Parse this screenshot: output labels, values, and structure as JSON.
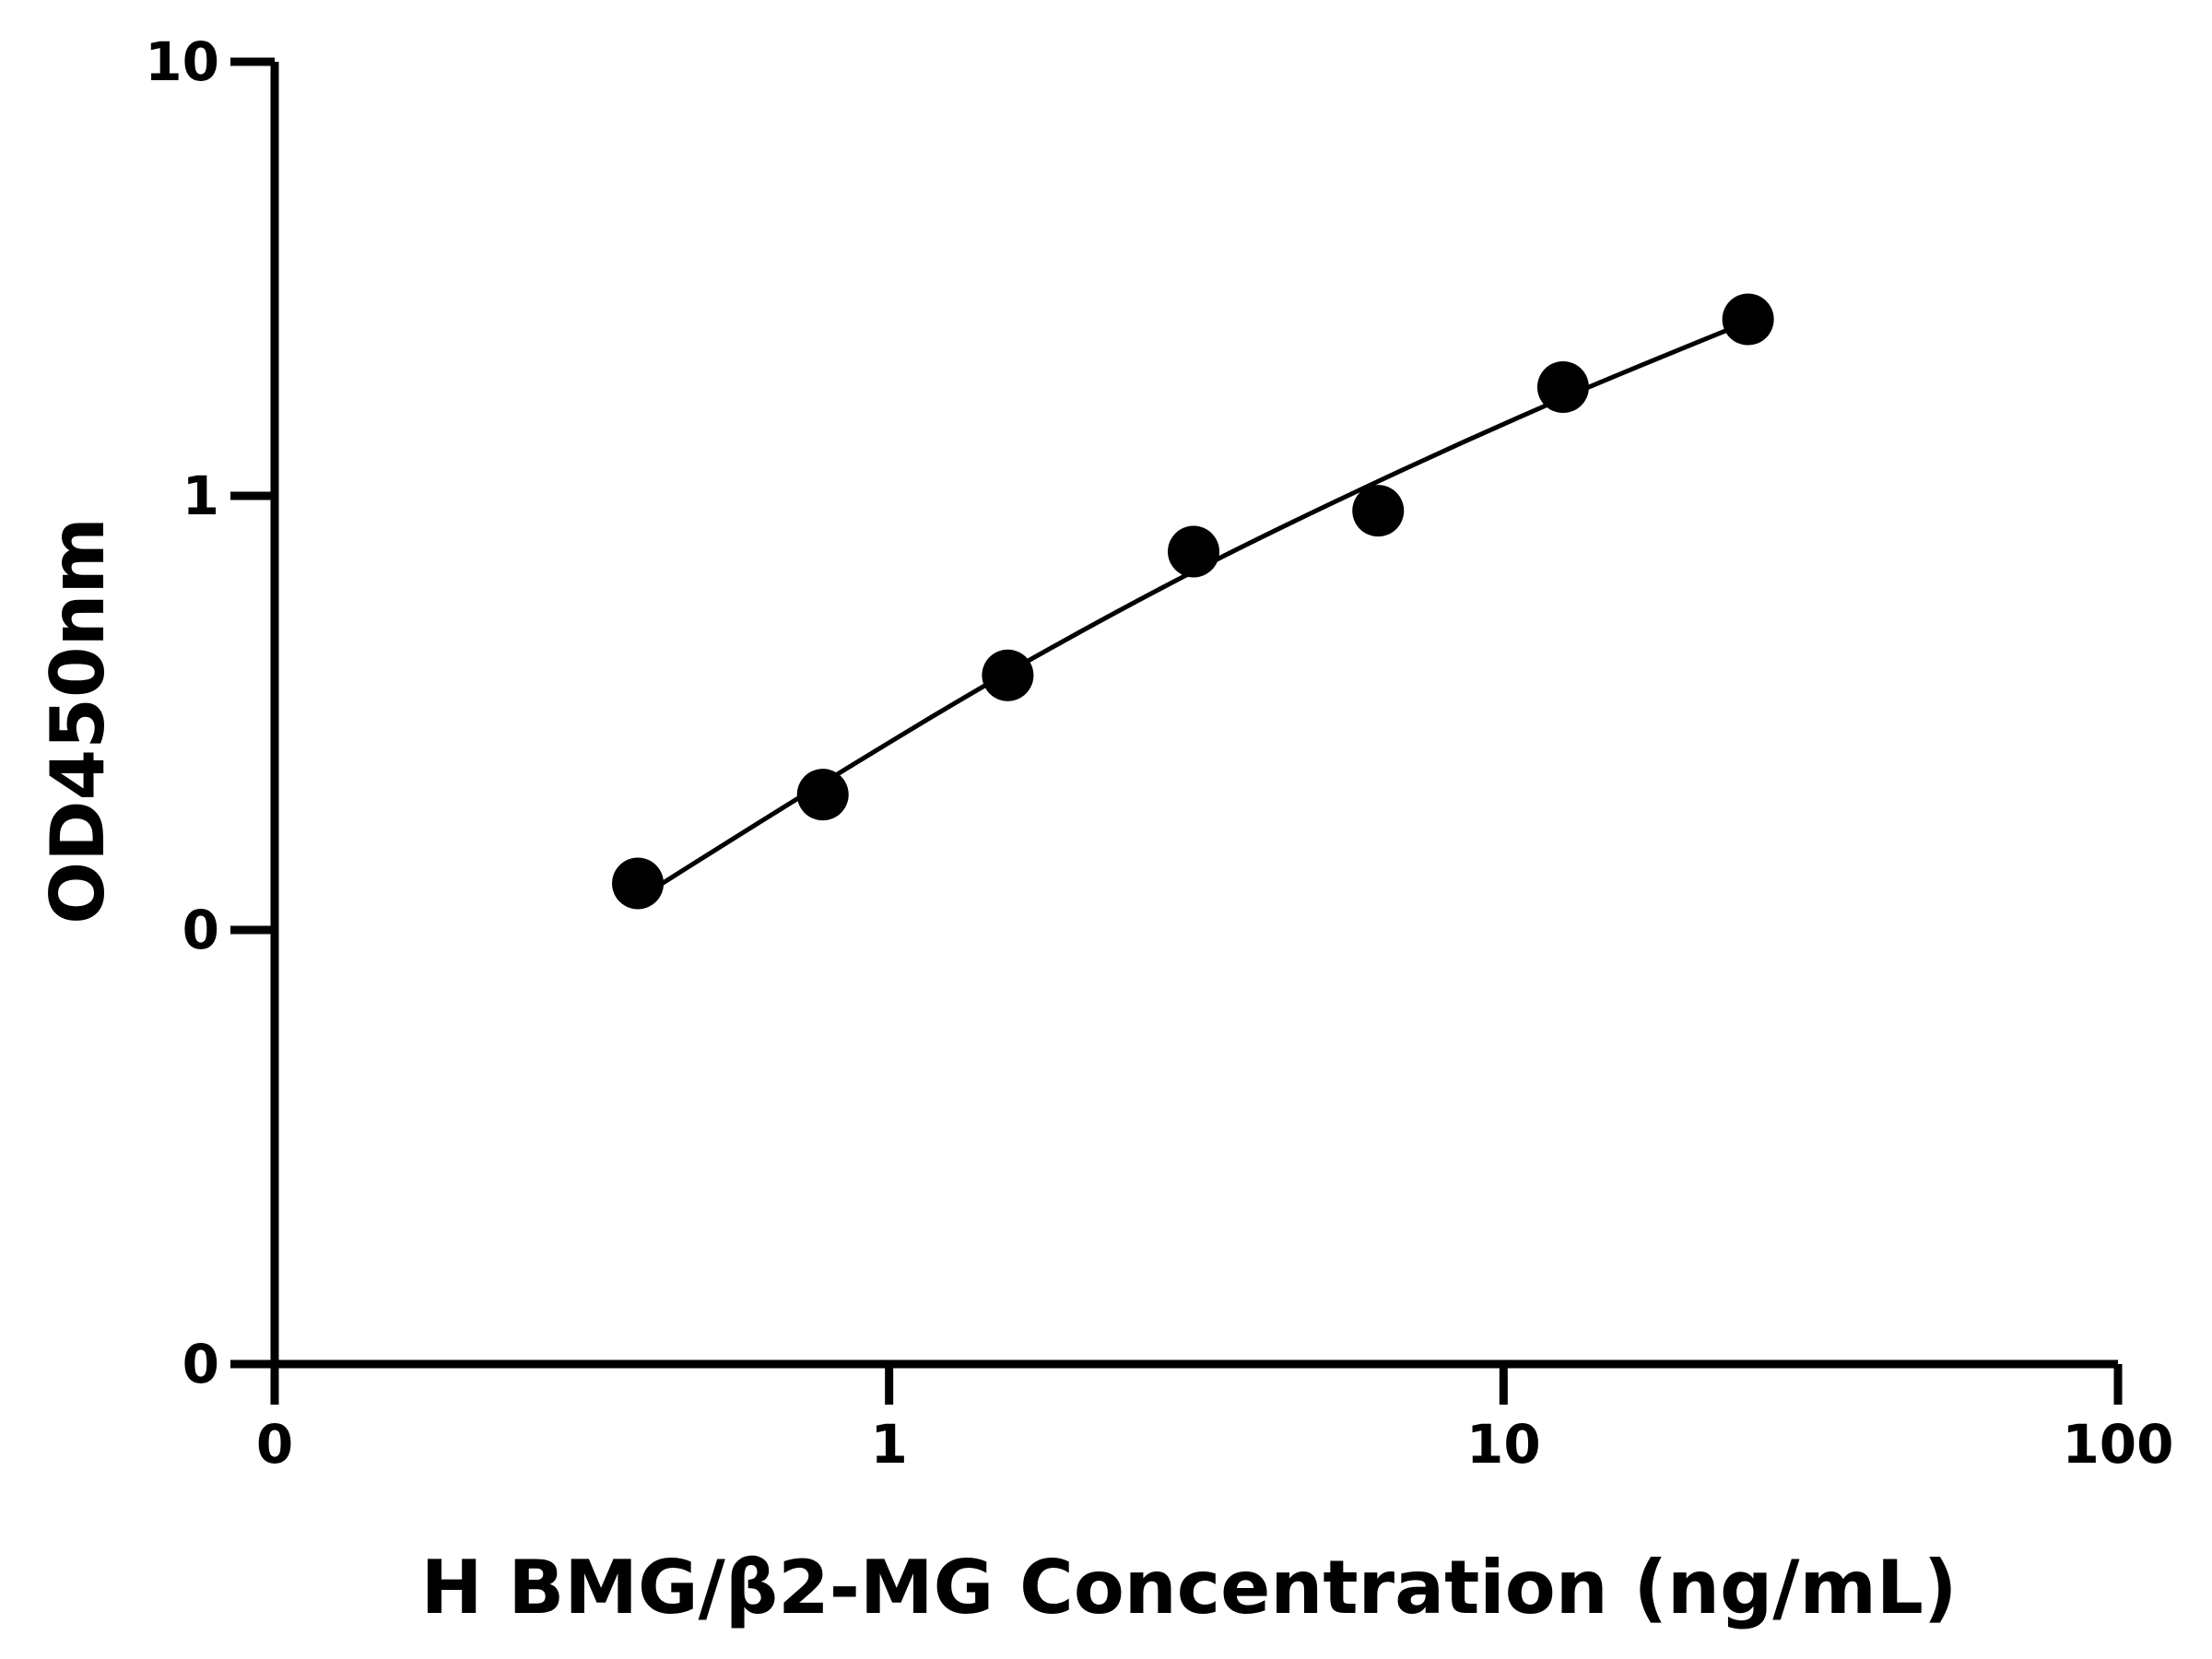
{
  "chart_data": {
    "type": "scatter",
    "title": "",
    "xlabel": "H BMG/β2-MG Concentration (ng/mL)",
    "ylabel": "OD450nm",
    "x_scale": "log",
    "y_scale": "log",
    "xlim": [
      0.1,
      100
    ],
    "ylim": [
      0.01,
      10
    ],
    "x_ticks": [
      {
        "value": 0.1,
        "label": "0"
      },
      {
        "value": 1,
        "label": "1"
      },
      {
        "value": 10,
        "label": "10"
      },
      {
        "value": 100,
        "label": "100"
      }
    ],
    "y_ticks": [
      {
        "value": 0.01,
        "label": "0"
      },
      {
        "value": 0.1,
        "label": "0"
      },
      {
        "value": 1,
        "label": "1"
      },
      {
        "value": 10,
        "label": "10"
      }
    ],
    "grid": false,
    "legend": "none",
    "series": [
      {
        "points": [
          {
            "x": 0.39,
            "y": 0.128
          },
          {
            "x": 0.78,
            "y": 0.205
          },
          {
            "x": 1.56,
            "y": 0.386
          },
          {
            "x": 3.13,
            "y": 0.744
          },
          {
            "x": 6.25,
            "y": 0.924
          },
          {
            "x": 12.5,
            "y": 1.78
          },
          {
            "x": 25,
            "y": 2.55
          }
        ],
        "fit": [
          {
            "x": 0.39,
            "y": 0.118
          },
          {
            "x": 0.78,
            "y": 0.218
          },
          {
            "x": 1.56,
            "y": 0.392
          },
          {
            "x": 3.13,
            "y": 0.67
          },
          {
            "x": 6.25,
            "y": 1.08
          },
          {
            "x": 12.5,
            "y": 1.68
          },
          {
            "x": 25,
            "y": 2.52
          }
        ],
        "color": "#000000"
      }
    ]
  }
}
